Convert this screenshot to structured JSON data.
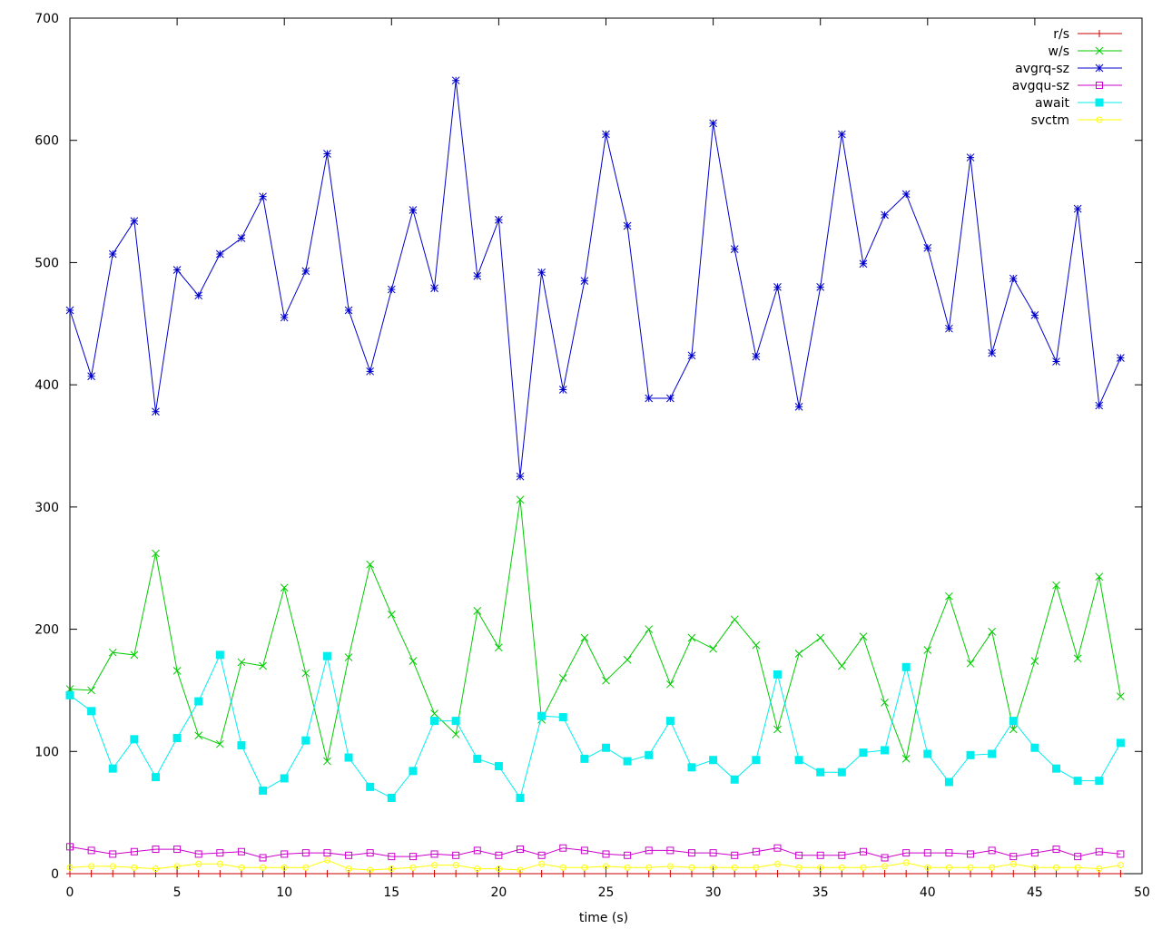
{
  "chart_data": {
    "type": "line",
    "xlabel": "time (s)",
    "ylabel": "",
    "title": "",
    "xlim": [
      0,
      50
    ],
    "ylim": [
      0,
      700
    ],
    "xticks": [
      0,
      5,
      10,
      15,
      20,
      25,
      30,
      35,
      40,
      45,
      50
    ],
    "yticks": [
      0,
      100,
      200,
      300,
      400,
      500,
      600,
      700
    ],
    "grid": false,
    "legend_position": "top-right",
    "x": [
      0,
      1,
      2,
      3,
      4,
      5,
      6,
      7,
      8,
      9,
      10,
      11,
      12,
      13,
      14,
      15,
      16,
      17,
      18,
      19,
      20,
      21,
      22,
      23,
      24,
      25,
      26,
      27,
      28,
      29,
      30,
      31,
      32,
      33,
      34,
      35,
      36,
      37,
      38,
      39,
      40,
      41,
      42,
      43,
      44,
      45,
      46,
      47,
      48,
      49
    ],
    "series": [
      {
        "name": "r/s",
        "color": "#cc0000",
        "marker": "plus",
        "values": [
          0,
          0,
          0,
          0,
          0,
          0,
          0,
          0,
          0,
          0,
          0,
          0,
          0,
          0,
          0,
          0,
          0,
          0,
          0,
          0,
          0,
          0,
          0,
          0,
          0,
          0,
          0,
          0,
          0,
          0,
          0,
          0,
          0,
          0,
          0,
          0,
          0,
          0,
          0,
          0,
          0,
          0,
          0,
          0,
          0,
          0,
          0,
          0,
          0,
          0
        ]
      },
      {
        "name": "w/s",
        "color": "#00cc00",
        "marker": "x",
        "values": [
          151,
          150,
          181,
          179,
          262,
          166,
          113,
          106,
          173,
          170,
          234,
          164,
          92,
          177,
          253,
          212,
          174,
          131,
          114,
          215,
          185,
          306,
          126,
          160,
          193,
          158,
          175,
          200,
          155,
          193,
          184,
          208,
          187,
          118,
          180,
          193,
          170,
          194,
          140,
          94,
          183,
          227,
          172,
          198,
          118,
          174,
          236,
          176,
          243,
          145
        ]
      },
      {
        "name": "avgrq-sz",
        "color": "#0000cc",
        "marker": "star",
        "values": [
          461,
          407,
          507,
          534,
          378,
          494,
          473,
          507,
          520,
          554,
          455,
          493,
          589,
          461,
          411,
          478,
          543,
          479,
          649,
          489,
          535,
          325,
          492,
          396,
          485,
          605,
          530,
          389,
          389,
          424,
          614,
          511,
          423,
          480,
          382,
          480,
          605,
          499,
          539,
          556,
          512,
          446,
          586,
          426,
          487,
          457,
          419,
          544,
          383,
          422
        ]
      },
      {
        "name": "avgqu-sz",
        "color": "#cc00cc",
        "marker": "square-open",
        "values": [
          22,
          19,
          16,
          18,
          20,
          20,
          16,
          17,
          18,
          13,
          16,
          17,
          17,
          15,
          17,
          14,
          14,
          16,
          15,
          19,
          15,
          20,
          15,
          21,
          19,
          16,
          15,
          19,
          19,
          17,
          17,
          15,
          18,
          21,
          15,
          15,
          15,
          18,
          13,
          17,
          17,
          17,
          16,
          19,
          14,
          17,
          20,
          14,
          18,
          16
        ]
      },
      {
        "name": "await",
        "color": "#00eeee",
        "marker": "square-filled",
        "values": [
          146,
          133,
          86,
          110,
          79,
          111,
          141,
          179,
          105,
          68,
          78,
          109,
          178,
          95,
          71,
          62,
          84,
          125,
          125,
          94,
          88,
          62,
          129,
          128,
          94,
          103,
          92,
          97,
          125,
          87,
          93,
          77,
          93,
          163,
          93,
          83,
          83,
          99,
          101,
          169,
          98,
          75,
          97,
          98,
          125,
          103,
          86,
          76,
          76,
          107
        ]
      },
      {
        "name": "svctm",
        "color": "#ffff00",
        "marker": "circle",
        "values": [
          5,
          6,
          6,
          5,
          4,
          6,
          8,
          8,
          5,
          5,
          5,
          5,
          11,
          4,
          3,
          4,
          5,
          7,
          7,
          4,
          4,
          3,
          8,
          5,
          5,
          6,
          5,
          5,
          6,
          5,
          5,
          5,
          5,
          8,
          5,
          5,
          5,
          5,
          6,
          9,
          5,
          5,
          5,
          5,
          8,
          5,
          5,
          5,
          4,
          7
        ]
      }
    ]
  }
}
